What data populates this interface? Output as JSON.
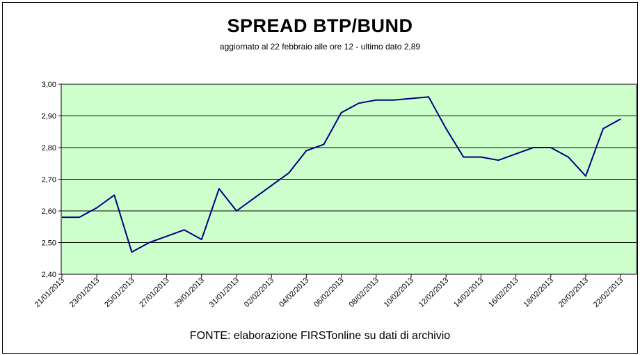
{
  "chart_data": {
    "type": "line",
    "title": "SPREAD  BTP/BUND",
    "subtitle": "aggiornato al 22 febbraio alle ore 12 - ultimo dato 2,89",
    "xlabel": "FONTE: elaborazione FIRSTonline su dati di archivio",
    "ylabel": "",
    "ylim": [
      2.4,
      3.0
    ],
    "y_ticks": [
      "2,40",
      "2,50",
      "2,60",
      "2,70",
      "2,80",
      "2,90",
      "3,00"
    ],
    "x_ticks": [
      "21/01/2013",
      "23/01/2013",
      "25/01/2013",
      "27/01/2013",
      "29/01/2013",
      "31/01/2013",
      "02/02/2013",
      "04/02/2013",
      "06/02/2013",
      "08/02/2013",
      "10/02/2013",
      "12/02/2013",
      "14/02/2013",
      "16/02/2013",
      "18/02/2013",
      "20/02/2013",
      "22/02/2013"
    ],
    "grid": true,
    "plot_background": "#ccffcc",
    "line_color": "#000080",
    "series": [
      {
        "x": [
          "21/01/2013",
          "22/01/2013",
          "23/01/2013",
          "24/01/2013",
          "25/01/2013",
          "26/01/2013",
          "27/01/2013",
          "28/01/2013",
          "29/01/2013",
          "30/01/2013",
          "31/01/2013",
          "01/02/2013",
          "02/02/2013",
          "03/02/2013",
          "04/02/2013",
          "05/02/2013",
          "06/02/2013",
          "07/02/2013",
          "08/02/2013",
          "09/02/2013",
          "11/02/2013",
          "12/02/2013",
          "13/02/2013",
          "14/02/2013",
          "15/02/2013",
          "16/02/2013",
          "17/02/2013",
          "18/02/2013",
          "19/02/2013",
          "20/02/2013",
          "21/02/2013",
          "22/02/2013"
        ],
        "values": [
          2.58,
          2.58,
          2.61,
          2.65,
          2.47,
          2.5,
          2.52,
          2.54,
          2.51,
          2.67,
          2.6,
          2.64,
          2.68,
          2.72,
          2.79,
          2.81,
          2.91,
          2.94,
          2.95,
          2.95,
          2.96,
          2.86,
          2.77,
          2.77,
          2.76,
          2.78,
          2.8,
          2.8,
          2.77,
          2.71,
          2.86,
          2.89
        ]
      }
    ]
  }
}
